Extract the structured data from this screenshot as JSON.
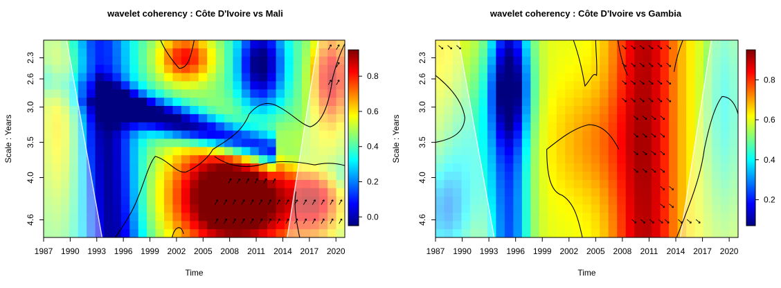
{
  "chart_data": [
    {
      "type": "heatmap",
      "title": "wavelet coherency : Côte D'Ivoire vs Mali",
      "xlabel": "Time",
      "ylabel": "Scale : Years",
      "x_ticks": [
        "1987",
        "1990",
        "1993",
        "1996",
        "1999",
        "2002",
        "2005",
        "2008",
        "2011",
        "2014",
        "2017",
        "2020"
      ],
      "y_ticks": [
        "2.3",
        "2.6",
        "3.0",
        "3.5",
        "4.0",
        "4.6"
      ],
      "xlim": [
        1987,
        2021
      ],
      "ylim": [
        2.05,
        4.85
      ],
      "colorbar_ticks": [
        "0.0",
        "0.2",
        "0.4",
        "0.6",
        "0.8"
      ],
      "colorbar_range": [
        -0.05,
        0.95
      ],
      "color_scale": [
        "#00007F",
        "#0000FF",
        "#007FFF",
        "#00FFFF",
        "#7FFF7F",
        "#FFFF00",
        "#FF7F00",
        "#FF0000",
        "#7F0000"
      ],
      "cone_of_influence": {
        "left_x_at_bottom": 1993.6,
        "right_x_at_bottom": 2014.5,
        "right_x_at_top": 2018.0
      },
      "significance_contours": true,
      "phase_arrows": true
    },
    {
      "type": "heatmap",
      "title": "wavelet coherency : Côte D'Ivoire vs Gambia",
      "xlabel": "Time",
      "ylabel": "Scale : Years",
      "x_ticks": [
        "1987",
        "1990",
        "1993",
        "1996",
        "1999",
        "2002",
        "2005",
        "2008",
        "2011",
        "2014",
        "2017",
        "2020"
      ],
      "y_ticks": [
        "2.3",
        "2.6",
        "3.0",
        "3.5",
        "4.0",
        "4.6"
      ],
      "xlim": [
        1987,
        2021
      ],
      "ylim": [
        2.05,
        4.85
      ],
      "colorbar_ticks": [
        "0.2",
        "0.4",
        "0.6",
        "0.8"
      ],
      "colorbar_range": [
        0.07,
        0.95
      ],
      "color_scale": [
        "#00007F",
        "#0000FF",
        "#007FFF",
        "#00FFFF",
        "#7FFF7F",
        "#FFFF00",
        "#FF7F00",
        "#FF0000",
        "#7F0000"
      ],
      "cone_of_influence": {
        "left_x_at_bottom": 1993.6,
        "right_x_at_bottom": 2014.5,
        "right_x_at_top": 2018.0
      },
      "significance_contours": true,
      "phase_arrows": true
    }
  ]
}
